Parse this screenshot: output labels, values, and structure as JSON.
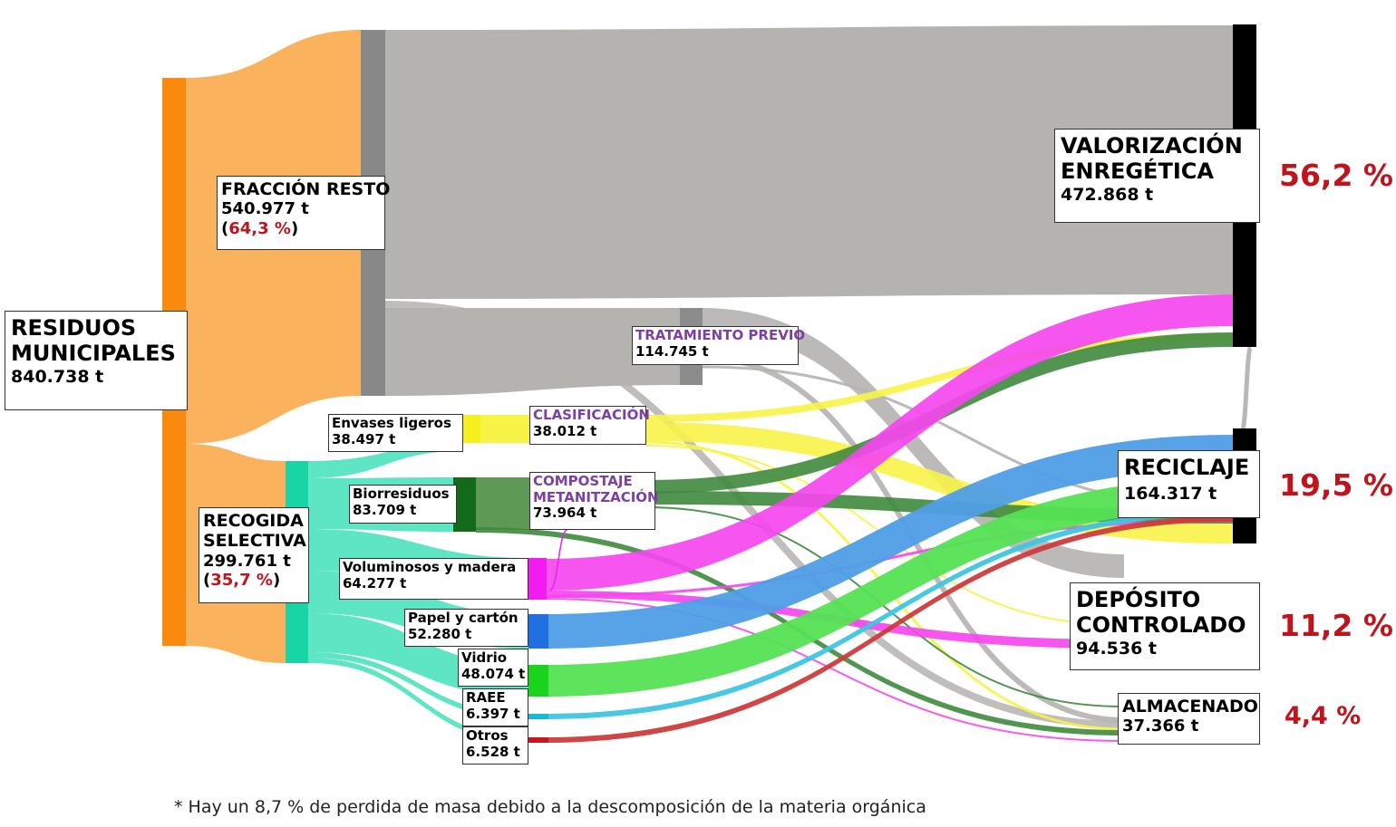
{
  "nodes": {
    "residuos": {
      "name": "RESIDUOS MUNICIPALES",
      "name_l1": "RESIDUOS",
      "name_l2": "MUNICIPALES",
      "value": "840.738 t",
      "color": "#f98a0d"
    },
    "fraccion_resto": {
      "name": "FRACCIÓN RESTO",
      "value": "540.977 t",
      "share": "64,3 %",
      "color": "#888888"
    },
    "recogida": {
      "name_l1": "RECOGIDA",
      "name_l2": "SELECTIVA",
      "value": "299.761 t",
      "share": "35,7 %",
      "color": "#19d4a4"
    },
    "tratamiento": {
      "name": "TRATAMIENTO PREVIO",
      "value": "114.745 t",
      "color": "#8c8c8c"
    },
    "envases": {
      "name": "Envases ligeros",
      "value": "38.497 t",
      "color": "#f7f01f"
    },
    "biorresiduos": {
      "name": "Biorresiduos",
      "value": "83.709 t",
      "color": "#136b1a"
    },
    "voluminosos": {
      "name": "Voluminosos y madera",
      "value": "64.277 t",
      "color": "#f21cf0"
    },
    "papel": {
      "name": "Papel y cartón",
      "value": "52.280 t",
      "color": "#1f6fe0"
    },
    "vidrio": {
      "name": "Vidrio",
      "value": "48.074 t",
      "color": "#19d41c"
    },
    "raee": {
      "name": "RAEE",
      "value": "6.397 t",
      "color": "#18b9d6"
    },
    "otros": {
      "name": "Otros",
      "value": "6.528 t",
      "color": "#c8161c"
    },
    "clasificacion": {
      "name": "CLASIFICACIÓN",
      "value": "38.012 t",
      "color": "#f7f01f"
    },
    "compostaje": {
      "name_l1": "COMPOSTAJE",
      "name_l2": "METANITZACIÓN",
      "value": "73.964 t",
      "color": "#5b9c55"
    },
    "valorizacion": {
      "name_l1": "VALORIZACIÓN",
      "name_l2": "ENREGÉTICA",
      "value": "472.868 t",
      "share": "56,2 %",
      "color": "#000000"
    },
    "reciclaje": {
      "name": "RECICLAJE",
      "value": "164.317 t",
      "share": "19,5 %",
      "color": "#000000"
    },
    "deposito": {
      "name_l1": "DEPÓSITO",
      "name_l2": "CONTROLADO",
      "value": "94.536 t",
      "share": "11,2 %"
    },
    "almacenado": {
      "name": "ALMACENADO",
      "value": "37.366 t",
      "share": "4,4 %"
    }
  },
  "link_colors": {
    "residuos_out": "#fbb25c",
    "resto_out": "#b5b3b0",
    "selectiva_out": "#5ee6c4",
    "envases": "#f7f347",
    "biorresiduos": "#3e8a3e",
    "compost": "#5e9a55",
    "voluminosos": "#f546ee",
    "papel": "#4f9ee6",
    "vidrio": "#55e254",
    "raee": "#3fc5e2",
    "otros": "#cd3b3b"
  },
  "footnote": "* Hay un 8,7 % de perdida de masa debido a la descomposición de la materia orgánica"
}
